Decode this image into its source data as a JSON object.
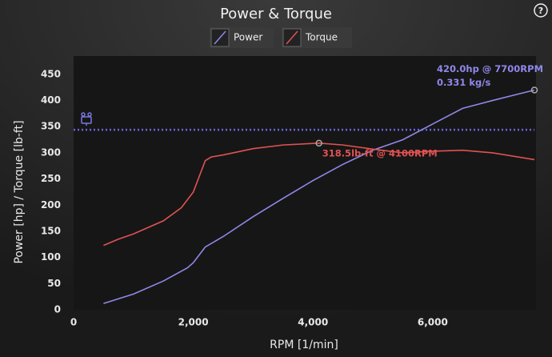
{
  "chart_data": {
    "type": "line",
    "title": "Power & Torque",
    "x_label": "RPM [1/min]",
    "y_label": "Power [hp] / Torque [lb-ft]",
    "xlim": [
      0,
      7700
    ],
    "ylim": [
      0,
      485
    ],
    "xticks": [
      0,
      {
        "value": 2000,
        "label": "2,000"
      },
      {
        "value": 4000,
        "label": "4,000"
      },
      {
        "value": 6000,
        "label": "6,000"
      }
    ],
    "yticks": [
      0,
      50,
      100,
      150,
      200,
      250,
      300,
      350,
      400,
      450
    ],
    "reference_line": {
      "value": 344,
      "color": "#6a66dc"
    },
    "series": [
      {
        "name": "Power",
        "color": "#8f88ea",
        "x": [
          500,
          1000,
          1500,
          1900,
          2000,
          2200,
          2500,
          3000,
          3500,
          4000,
          4500,
          5000,
          5500,
          6000,
          6500,
          7000,
          7700
        ],
        "values": [
          12,
          30,
          55,
          80,
          90,
          120,
          140,
          178,
          213,
          247,
          278,
          305,
          325,
          355,
          385,
          400,
          420
        ]
      },
      {
        "name": "Torque",
        "color": "#e05252",
        "x": [
          500,
          750,
          1000,
          1500,
          1800,
          2000,
          2100,
          2200,
          2300,
          2500,
          3000,
          3500,
          4100,
          4500,
          5000,
          5500,
          6000,
          6500,
          7000,
          7700
        ],
        "values": [
          123,
          135,
          145,
          170,
          195,
          225,
          255,
          285,
          292,
          296,
          308,
          315,
          318.5,
          315,
          307,
          300,
          303,
          305,
          300,
          287
        ]
      }
    ],
    "annotations": [
      {
        "series": 0,
        "lines": [
          "420.0hp @ 7700RPM",
          "0.331 kg/s"
        ]
      },
      {
        "series": 1,
        "lines": [
          "318.5lb-ft @ 4100RPM"
        ]
      }
    ]
  },
  "help_button": "?"
}
